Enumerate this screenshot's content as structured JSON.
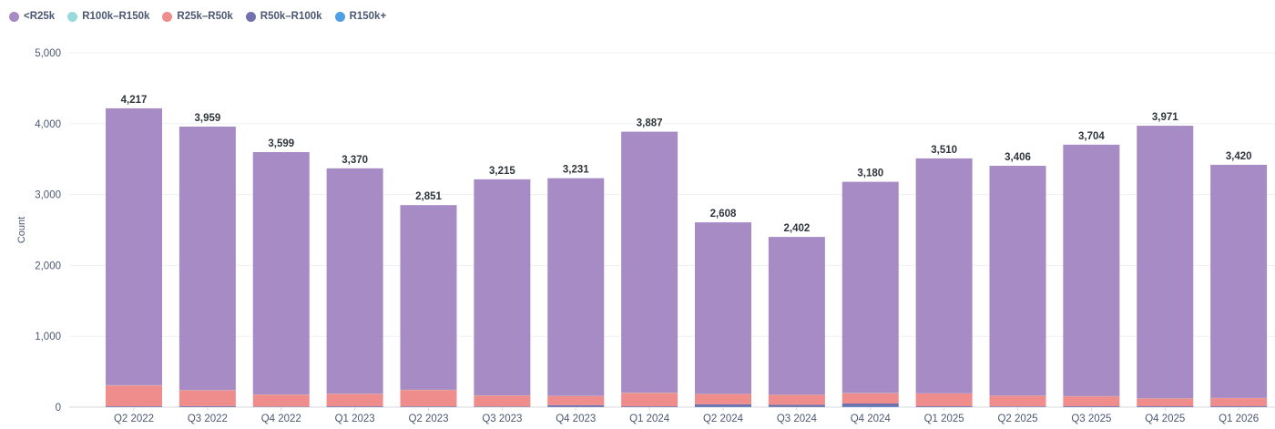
{
  "chart_data": {
    "type": "bar",
    "stacked": true,
    "ylabel": "Count",
    "xlabel": "",
    "ylim": [
      0,
      5000
    ],
    "yticks": [
      "0",
      "1,000",
      "2,000",
      "3,000",
      "4,000",
      "5,000"
    ],
    "ytick_values": [
      0,
      1000,
      2000,
      3000,
      4000,
      5000
    ],
    "grid": true,
    "legend_position": "top-left",
    "categories": [
      "Q2 2022",
      "Q3 2022",
      "Q4 2022",
      "Q1 2023",
      "Q2 2023",
      "Q3 2023",
      "Q4 2023",
      "Q1 2024",
      "Q2 2024",
      "Q3 2024",
      "Q4 2024",
      "Q1 2025",
      "Q2 2025",
      "Q3 2025",
      "Q4 2025",
      "Q1 2026"
    ],
    "totals": [
      "4,217",
      "3,959",
      "3,599",
      "3,370",
      "2,851",
      "3,215",
      "3,231",
      "3,887",
      "2,608",
      "2,402",
      "3,180",
      "3,510",
      "3,406",
      "3,704",
      "3,971",
      "3,420"
    ],
    "stack_order": [
      "R150k+",
      "R50k–R100k",
      "R25k–R50k",
      "R100k–R150k",
      "<R25k"
    ],
    "series": [
      {
        "name": "<R25k",
        "color": "#a78bc4",
        "values": [
          3907,
          3717,
          3419,
          3180,
          2606,
          3048,
          3071,
          3682,
          2420,
          2227,
          2980,
          3315,
          3243,
          3549,
          3846,
          3290
        ]
      },
      {
        "name": "R100k–R150k",
        "color": "#98d9d9",
        "values": [
          3,
          3,
          2,
          3,
          2,
          2,
          2,
          3,
          2,
          2,
          3,
          2,
          2,
          2,
          2,
          2
        ]
      },
      {
        "name": "R25k–R50k",
        "color": "#ef8c8c",
        "values": [
          295,
          225,
          170,
          175,
          232,
          155,
          130,
          190,
          145,
          140,
          145,
          180,
          150,
          140,
          110,
          115
        ]
      },
      {
        "name": "R50k–R100k",
        "color": "#7172ad",
        "values": [
          10,
          12,
          6,
          10,
          9,
          8,
          25,
          10,
          35,
          30,
          45,
          10,
          8,
          10,
          10,
          10
        ]
      },
      {
        "name": "R150k+",
        "color": "#509ee3",
        "values": [
          2,
          2,
          2,
          2,
          2,
          2,
          3,
          2,
          6,
          3,
          7,
          3,
          3,
          3,
          3,
          3
        ]
      }
    ]
  }
}
